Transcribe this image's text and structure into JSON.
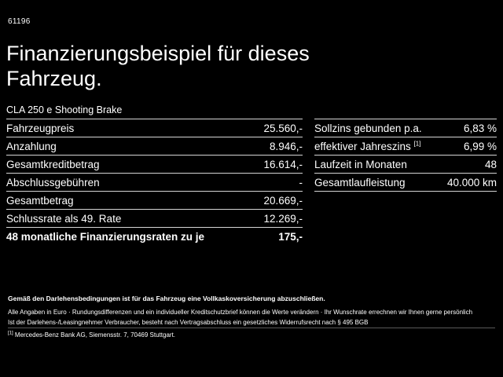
{
  "page": {
    "id": "61196",
    "title": "Finanzierungsbeispiel für dieses Fahrzeug.",
    "subtitle": "CLA 250 e Shooting Brake"
  },
  "left_table": {
    "rows": [
      {
        "label": "Fahrzeugpreis",
        "value": "25.560,-"
      },
      {
        "label": "Anzahlung",
        "value": "8.946,-"
      },
      {
        "label": "Gesamtkreditbetrag",
        "value": "16.614,-"
      },
      {
        "label": "Abschlussgebühren",
        "value": "-"
      },
      {
        "label": "Gesamtbetrag",
        "value": "20.669,-"
      },
      {
        "label": "Schlussrate als 49. Rate",
        "value": "12.269,-"
      },
      {
        "label": "48 monatliche Finanzierungsraten zu je",
        "value": "175,-"
      }
    ]
  },
  "right_table": {
    "rows": [
      {
        "label": "Sollzins gebunden p.a.",
        "value": "6,83 %"
      },
      {
        "label": "effektiver Jahreszins",
        "sup": "[1]",
        "value": "6,99 %"
      },
      {
        "label": "Laufzeit in Monaten",
        "value": "48"
      },
      {
        "label": "Gesamtlaufleistung",
        "value": "40.000 km"
      }
    ]
  },
  "footer": {
    "bold_note": "Gemäß den Darlehensbedingungen ist für das Fahrzeug eine Vollkaskoversicherung abzuschließen.",
    "line1": "Alle Angaben in Euro · Rundungsdifferenzen und ein individueller Kreditschutzbrief können die Werte verändern · Ihr Wunschrate errechnen wir Ihnen gerne persönlich",
    "line2": "Ist der Darlehens-/Leasingnehmer Verbraucher, besteht nach Vertragsabschluss ein gesetzliches Widerrufsrecht nach § 495 BGB",
    "footnote_marker": "[1]",
    "footnote": "Mercedes-Benz Bank AG, Siemensstr. 7, 70469 Stuttgart."
  }
}
